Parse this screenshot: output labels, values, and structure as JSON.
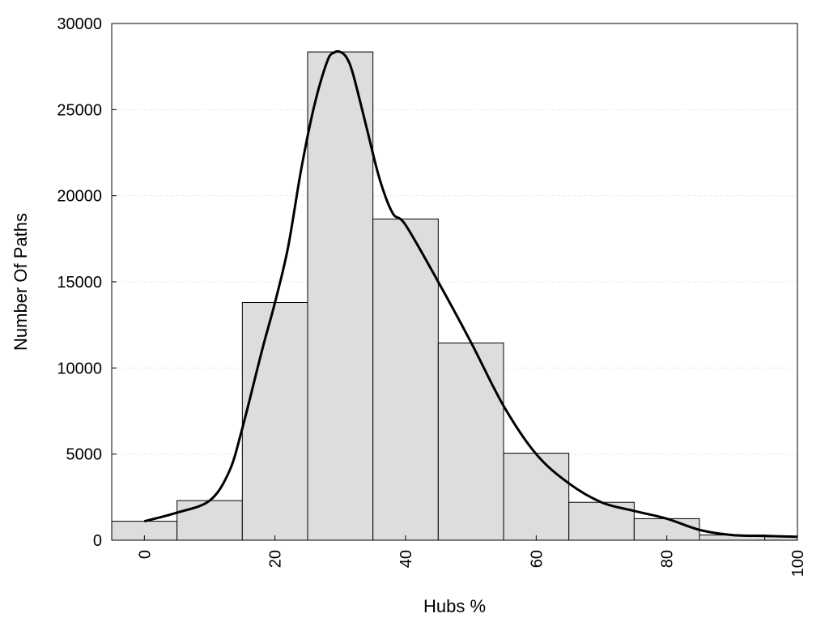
{
  "chart_data": {
    "type": "bar",
    "xlabel": "Hubs %",
    "ylabel": "Number Of Paths",
    "xlim": [
      -5,
      100
    ],
    "ylim": [
      0,
      30000
    ],
    "x_ticks": [
      0,
      20,
      40,
      60,
      80,
      100
    ],
    "y_ticks": [
      0,
      5000,
      10000,
      15000,
      20000,
      25000,
      30000
    ],
    "grid": "horizontal-dotted",
    "bin_width": 10,
    "bins": [
      {
        "center": 0,
        "value": 1100
      },
      {
        "center": 10,
        "value": 2300
      },
      {
        "center": 20,
        "value": 13800
      },
      {
        "center": 30,
        "value": 28350
      },
      {
        "center": 40,
        "value": 18650
      },
      {
        "center": 50,
        "value": 11450
      },
      {
        "center": 60,
        "value": 5050
      },
      {
        "center": 70,
        "value": 2200
      },
      {
        "center": 80,
        "value": 1250
      },
      {
        "center": 90,
        "value": 300
      },
      {
        "center": 100,
        "value": 200
      }
    ],
    "density_curve": {
      "x": [
        0,
        5,
        10,
        13,
        15,
        18,
        20,
        22,
        24,
        26,
        28,
        29,
        30,
        31,
        32,
        34,
        36,
        38,
        40,
        45,
        50,
        55,
        60,
        65,
        70,
        75,
        80,
        85,
        90,
        95,
        100
      ],
      "y": [
        1100,
        1600,
        2300,
        4000,
        6500,
        11000,
        13800,
        17000,
        21500,
        25200,
        27800,
        28300,
        28350,
        28000,
        27000,
        24000,
        21000,
        19000,
        18300,
        15000,
        11500,
        7800,
        5000,
        3300,
        2200,
        1700,
        1250,
        600,
        300,
        250,
        200
      ],
      "color": "#000000"
    },
    "bar_fill": "#dddddd",
    "bar_stroke": "#000000"
  }
}
